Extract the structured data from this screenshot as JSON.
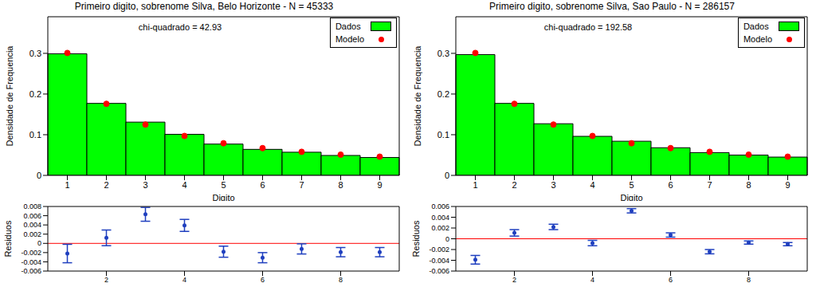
{
  "chart_data": [
    {
      "type": "bar",
      "title": "Primeiro digito, sobrenome Silva, Belo Horizonte - N = 45333",
      "annotation": "chi-quadrado = 42.93",
      "x_label": "Digito",
      "y_label": "Densidade de Frequencia",
      "categories": [
        1,
        2,
        3,
        4,
        5,
        6,
        7,
        8,
        9
      ],
      "series": [
        {
          "name": "Dados",
          "type": "bar",
          "color": "#00ff00",
          "values": [
            0.299,
            0.177,
            0.131,
            0.101,
            0.077,
            0.064,
            0.057,
            0.049,
            0.044
          ]
        },
        {
          "name": "Modelo",
          "type": "scatter",
          "color": "#ff0000",
          "marker": "circle",
          "values": [
            0.301,
            0.176,
            0.125,
            0.097,
            0.079,
            0.067,
            0.058,
            0.051,
            0.046
          ]
        }
      ],
      "ylim": [
        0,
        0.39
      ],
      "yticks": [
        0,
        0.1,
        0.2,
        0.3
      ],
      "legend": "upper right"
    },
    {
      "type": "scatter",
      "y_label": "Residuos",
      "x": [
        1,
        2,
        3,
        4,
        5,
        6,
        7,
        8,
        9
      ],
      "values": [
        -0.0022,
        0.0012,
        0.0063,
        0.0039,
        -0.0018,
        -0.0031,
        -0.0012,
        -0.0019,
        -0.0019
      ],
      "errors": [
        0.002,
        0.0017,
        0.0015,
        0.0013,
        0.0012,
        0.0011,
        0.0011,
        0.001,
        0.001
      ],
      "color": "#1f3fbf",
      "marker": "circle",
      "xlim": [
        0.5,
        9.5
      ],
      "xticks": [
        2,
        4,
        6,
        8
      ],
      "ylim": [
        -0.006,
        0.008
      ],
      "yticks": [
        -0.006,
        -0.004,
        -0.002,
        0,
        0.002,
        0.004,
        0.006,
        0.008
      ],
      "reference_y": 0
    },
    {
      "type": "bar",
      "title": "Primeiro digito, sobrenome Silva, Sao Paulo - N = 286157",
      "annotation": "chi-quadrado = 192.58",
      "x_label": "Digito",
      "y_label": "Densidade de Frequencia",
      "categories": [
        1,
        2,
        3,
        4,
        5,
        6,
        7,
        8,
        9
      ],
      "series": [
        {
          "name": "Dados",
          "type": "bar",
          "color": "#00ff00",
          "values": [
            0.297,
            0.177,
            0.127,
            0.096,
            0.084,
            0.068,
            0.056,
            0.05,
            0.045
          ]
        },
        {
          "name": "Modelo",
          "type": "scatter",
          "color": "#ff0000",
          "marker": "circle",
          "values": [
            0.301,
            0.176,
            0.125,
            0.097,
            0.079,
            0.067,
            0.058,
            0.051,
            0.046
          ]
        }
      ],
      "ylim": [
        0,
        0.39
      ],
      "yticks": [
        0,
        0.1,
        0.2,
        0.3
      ],
      "legend": "upper right"
    },
    {
      "type": "scatter",
      "y_label": "Residuos",
      "x": [
        1,
        2,
        3,
        4,
        5,
        6,
        7,
        8,
        9
      ],
      "values": [
        -0.0039,
        0.0011,
        0.0022,
        -0.0008,
        0.0052,
        0.0007,
        -0.0024,
        -0.0007,
        -0.001
      ],
      "errors": [
        0.0008,
        0.0006,
        0.0005,
        0.0005,
        0.0004,
        0.0004,
        0.0004,
        0.0003,
        0.0003
      ],
      "color": "#1f3fbf",
      "marker": "circle",
      "xlim": [
        0.5,
        9.5
      ],
      "xticks": [
        2,
        4,
        6,
        8
      ],
      "ylim": [
        -0.006,
        0.006
      ],
      "yticks": [
        -0.006,
        -0.004,
        -0.002,
        0,
        0.002,
        0.004,
        0.006
      ],
      "reference_y": 0
    }
  ]
}
